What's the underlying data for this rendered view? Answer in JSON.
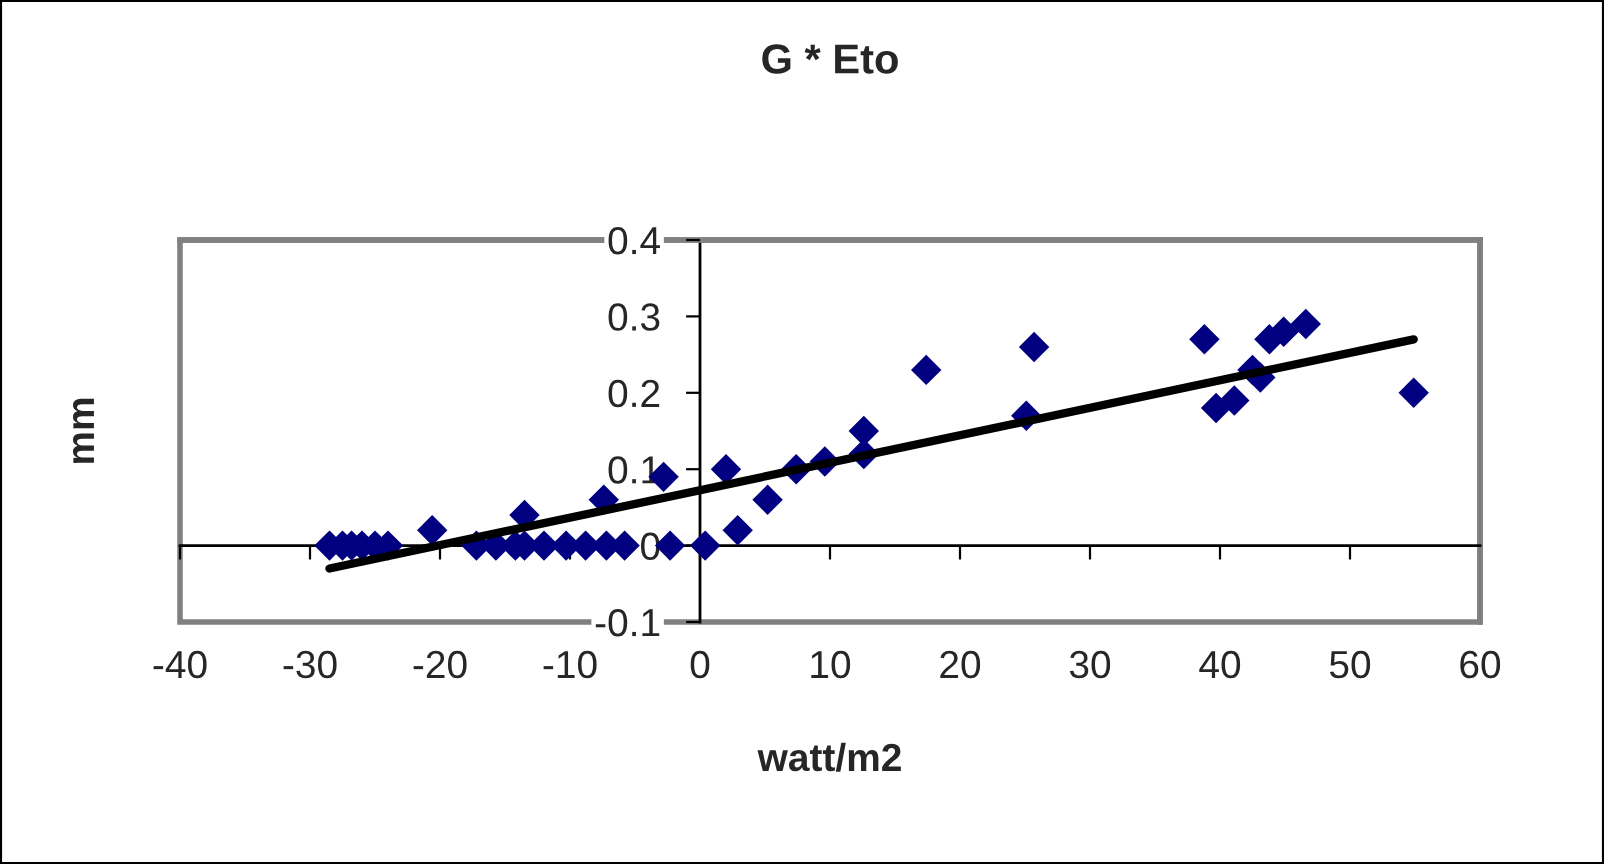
{
  "chart_data": {
    "type": "scatter",
    "title": "G * Eto",
    "xlabel": "watt/m2",
    "ylabel": "mm",
    "xlim": [
      -40,
      60
    ],
    "xticks": [
      -40,
      -30,
      -20,
      -10,
      0,
      10,
      20,
      30,
      40,
      50,
      60
    ],
    "ylim": [
      -0.1,
      0.4
    ],
    "yticks": [
      -0.1,
      0,
      0.1,
      0.2,
      0.3,
      0.4
    ],
    "series": [
      {
        "color": "#000080",
        "marker": "diamond",
        "x": [
          -28.5,
          -27.5,
          -26.8,
          -26.0,
          -25.0,
          -24.0,
          -20.6,
          -17.2,
          -15.7,
          -14.2,
          -13.5,
          -12.0,
          -10.3,
          -8.8,
          -7.2,
          -5.8,
          -13.5,
          -7.4,
          -2.8,
          -2.3,
          0.4,
          2.0,
          2.9,
          5.2,
          7.4,
          9.6,
          12.6,
          12.6,
          17.4,
          25.1,
          25.7,
          38.8,
          39.7,
          41.1,
          42.5,
          43.1,
          43.8,
          44.9,
          46.6,
          54.9
        ],
        "values": [
          0,
          0,
          0,
          0,
          0,
          0,
          0.02,
          0,
          0,
          0,
          0,
          0,
          0,
          0,
          0,
          0,
          0.04,
          0.06,
          0.09,
          0,
          0,
          0.1,
          0.02,
          0.06,
          0.1,
          0.11,
          0.15,
          0.12,
          0.23,
          0.17,
          0.26,
          0.27,
          0.18,
          0.19,
          0.23,
          0.22,
          0.27,
          0.28,
          0.29,
          0.2
        ]
      },
      {
        "type": "line",
        "color": "#000000",
        "x": [
          -28.5,
          54.9
        ],
        "values": [
          -0.03,
          0.27
        ]
      }
    ]
  }
}
